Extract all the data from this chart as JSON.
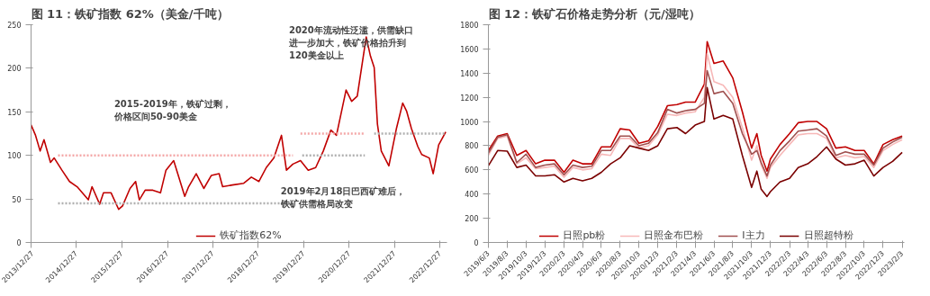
{
  "chart_data": [
    {
      "type": "line",
      "title": "图 11：铁矿指数 62%（美金/千吨）",
      "legend": "bottom",
      "grid": false,
      "xlim": [
        "2013-12-27",
        "2023-02-20"
      ],
      "ylim": [
        0,
        250
      ],
      "yticks": [
        0,
        50,
        100,
        150,
        200,
        250
      ],
      "xticks": [
        {
          "value": "2013-12-27",
          "label": "2013/12/27"
        },
        {
          "value": "2014-12-27",
          "label": "2014/12/27"
        },
        {
          "value": "2015-12-27",
          "label": "2015/12/27"
        },
        {
          "value": "2016-12-27",
          "label": "2016/12/27"
        },
        {
          "value": "2017-12-27",
          "label": "2017/12/27"
        },
        {
          "value": "2018-12-27",
          "label": "2018/12/27"
        },
        {
          "value": "2019-12-27",
          "label": "2019/12/27"
        },
        {
          "value": "2020-12-27",
          "label": "2020/12/27"
        },
        {
          "value": "2021-12-27",
          "label": "2021/12/27"
        },
        {
          "value": "2022-12-27",
          "label": "2022/12/27"
        }
      ],
      "annotations": [
        "2015-2019年，铁矿过剩，价格区间50-90美金",
        "2020年流动性泛滥，供需缺口进一步加大，铁矿价格抬升到120美金以上",
        "2019年2月18日巴西矿难后，铁矿供需格局改变"
      ],
      "series": [
        {
          "name": "铁矿指数62%",
          "color": "#c00000",
          "line_style": "solid",
          "x": [
            "2013-12-27",
            "2014-02-01",
            "2014-03-10",
            "2014-04-10",
            "2014-06-01",
            "2014-07-01",
            "2014-09-01",
            "2014-11-01",
            "2015-01-01",
            "2015-04-01",
            "2015-05-01",
            "2015-07-01",
            "2015-08-01",
            "2015-10-01",
            "2015-12-01",
            "2016-01-01",
            "2016-03-01",
            "2016-04-15",
            "2016-05-15",
            "2016-07-01",
            "2016-09-01",
            "2016-11-01",
            "2016-12-15",
            "2017-02-15",
            "2017-03-15",
            "2017-05-15",
            "2017-06-15",
            "2017-08-15",
            "2017-10-15",
            "2017-12-15",
            "2018-02-15",
            "2018-03-15",
            "2018-06-01",
            "2018-09-01",
            "2018-11-01",
            "2019-01-01",
            "2019-03-01",
            "2019-05-01",
            "2019-07-01",
            "2019-08-10",
            "2019-10-01",
            "2019-12-01",
            "2020-02-01",
            "2020-04-01",
            "2020-06-01",
            "2020-08-01",
            "2020-09-15",
            "2020-12-01",
            "2021-01-15",
            "2021-03-01",
            "2021-05-12",
            "2021-06-15",
            "2021-07-15",
            "2021-08-10",
            "2021-09-10",
            "2021-11-10",
            "2022-01-10",
            "2022-03-01",
            "2022-04-01",
            "2022-05-10",
            "2022-07-01",
            "2022-08-01",
            "2022-10-01",
            "2022-11-01",
            "2022-12-15",
            "2023-02-10"
          ],
          "values": [
            135,
            123,
            105,
            118,
            92,
            97,
            83,
            70,
            64,
            49,
            64,
            44,
            57,
            57,
            38,
            42,
            62,
            70,
            49,
            60,
            60,
            57,
            83,
            94,
            81,
            53,
            64,
            79,
            62,
            77,
            79,
            64,
            66,
            68,
            75,
            70,
            86,
            97,
            123,
            83,
            90,
            94,
            83,
            86,
            105,
            129,
            123,
            175,
            162,
            168,
            236,
            214,
            201,
            136,
            105,
            88,
            131,
            160,
            151,
            131,
            110,
            101,
            97,
            79,
            112,
            127
          ]
        },
        {
          "color": "#f4a7a7",
          "line_style": "dotted",
          "x": [
            "2014-08-01",
            "2019-10-01"
          ],
          "values": [
            100,
            100
          ]
        },
        {
          "color": "#b0b0b0",
          "line_style": "dotted",
          "x": [
            "2014-08-01",
            "2019-10-01"
          ],
          "values": [
            45,
            45
          ]
        },
        {
          "color": "#f4a7a7",
          "line_style": "dotted",
          "x": [
            "2019-12-01",
            "2021-05-01"
          ],
          "values": [
            125,
            125
          ]
        },
        {
          "color": "#b0b0b0",
          "line_style": "dotted",
          "x": [
            "2019-12-15",
            "2021-05-01"
          ],
          "values": [
            100,
            100
          ]
        },
        {
          "color": "#b0b0b0",
          "line_style": "dotted",
          "x": [
            "2021-07-15",
            "2023-02-10"
          ],
          "values": [
            125,
            125
          ]
        }
      ]
    },
    {
      "type": "line",
      "title": "图 12：铁矿石价格走势分析（元/湿吨）",
      "legend": "bottom",
      "grid": false,
      "xlim": [
        "2019-06-03",
        "2023-02-10"
      ],
      "ylim": [
        0,
        1800
      ],
      "yticks": [
        0,
        200,
        400,
        600,
        800,
        1000,
        1200,
        1400,
        1600,
        1800
      ],
      "xticks": [
        {
          "value": "2019-06-03",
          "label": "2019/6/3"
        },
        {
          "value": "2019-08-03",
          "label": "2019/8/3"
        },
        {
          "value": "2019-10-03",
          "label": "2019/10/3"
        },
        {
          "value": "2019-12-03",
          "label": "2019/12/3"
        },
        {
          "value": "2020-02-03",
          "label": "2020/2/3"
        },
        {
          "value": "2020-04-03",
          "label": "2020/4/3"
        },
        {
          "value": "2020-06-03",
          "label": "2020/6/3"
        },
        {
          "value": "2020-08-03",
          "label": "2020/8/3"
        },
        {
          "value": "2020-10-03",
          "label": "2020/10/3"
        },
        {
          "value": "2020-12-03",
          "label": "2020/12/3"
        },
        {
          "value": "2021-02-03",
          "label": "2021/2/3"
        },
        {
          "value": "2021-04-03",
          "label": "2021/4/3"
        },
        {
          "value": "2021-06-03",
          "label": "2021/6/3"
        },
        {
          "value": "2021-08-03",
          "label": "2021/8/3"
        },
        {
          "value": "2021-10-03",
          "label": "2021/10/3"
        },
        {
          "value": "2021-12-03",
          "label": "2021/12/3"
        },
        {
          "value": "2022-02-03",
          "label": "2022/2/3"
        },
        {
          "value": "2022-04-03",
          "label": "2022/4/3"
        },
        {
          "value": "2022-06-03",
          "label": "2022/6/3"
        },
        {
          "value": "2022-08-03",
          "label": "2022/8/3"
        },
        {
          "value": "2022-10-03",
          "label": "2022/10/3"
        },
        {
          "value": "2022-12-03",
          "label": "2022/12/3"
        },
        {
          "value": "2023-02-03",
          "label": "2023/2/3"
        }
      ],
      "x": [
        "2019-06-03",
        "2019-07-03",
        "2019-08-03",
        "2019-09-03",
        "2019-10-03",
        "2019-11-03",
        "2019-12-03",
        "2020-01-03",
        "2020-02-03",
        "2020-03-03",
        "2020-04-03",
        "2020-05-03",
        "2020-06-03",
        "2020-07-03",
        "2020-08-03",
        "2020-09-03",
        "2020-10-03",
        "2020-11-03",
        "2020-12-03",
        "2021-01-03",
        "2021-02-03",
        "2021-03-03",
        "2021-04-03",
        "2021-05-03",
        "2021-05-12",
        "2021-06-03",
        "2021-07-03",
        "2021-08-03",
        "2021-09-03",
        "2021-10-03",
        "2021-10-20",
        "2021-11-03",
        "2021-11-22",
        "2021-12-03",
        "2022-01-03",
        "2022-02-03",
        "2022-03-03",
        "2022-04-03",
        "2022-05-03",
        "2022-06-03",
        "2022-07-03",
        "2022-08-03",
        "2022-09-03",
        "2022-10-03",
        "2022-11-03",
        "2022-12-03",
        "2023-01-03",
        "2023-02-03"
      ],
      "series": [
        {
          "name": "日照pb粉",
          "color": "#c00000",
          "values": [
            760,
            880,
            900,
            720,
            760,
            650,
            680,
            680,
            580,
            680,
            650,
            650,
            790,
            790,
            940,
            930,
            820,
            840,
            960,
            1130,
            1140,
            1160,
            1160,
            1310,
            1660,
            1480,
            1500,
            1360,
            1080,
            780,
            900,
            720,
            590,
            690,
            810,
            900,
            990,
            1000,
            1000,
            940,
            780,
            790,
            760,
            760,
            650,
            810,
            850,
            880
          ]
        },
        {
          "name": "日照金布巴粉",
          "color": "#f7b8b8",
          "values": [
            720,
            860,
            880,
            650,
            700,
            610,
            620,
            630,
            540,
            620,
            600,
            610,
            730,
            720,
            860,
            860,
            780,
            800,
            890,
            1060,
            1050,
            1070,
            1080,
            1200,
            1560,
            1330,
            1300,
            1200,
            950,
            680,
            800,
            640,
            530,
            620,
            720,
            810,
            890,
            900,
            900,
            860,
            700,
            720,
            700,
            710,
            620,
            760,
            810,
            850
          ]
        },
        {
          "name": "I主力",
          "color": "#a0504f",
          "values": [
            740,
            870,
            890,
            660,
            730,
            620,
            640,
            650,
            560,
            640,
            620,
            630,
            760,
            760,
            880,
            880,
            800,
            820,
            910,
            1100,
            1070,
            1090,
            1100,
            1150,
            1420,
            1230,
            1250,
            1150,
            900,
            730,
            760,
            660,
            550,
            640,
            760,
            840,
            920,
            930,
            940,
            880,
            720,
            750,
            730,
            730,
            640,
            780,
            830,
            870
          ]
        },
        {
          "name": "日照超特粉",
          "color": "#7a0000",
          "values": [
            635,
            760,
            755,
            620,
            640,
            550,
            550,
            560,
            500,
            530,
            510,
            530,
            580,
            650,
            700,
            800,
            780,
            760,
            800,
            940,
            950,
            900,
            970,
            1000,
            1280,
            1020,
            1050,
            1020,
            720,
            455,
            590,
            440,
            380,
            420,
            500,
            530,
            620,
            650,
            710,
            790,
            690,
            640,
            650,
            680,
            550,
            620,
            670,
            745
          ]
        }
      ]
    }
  ]
}
